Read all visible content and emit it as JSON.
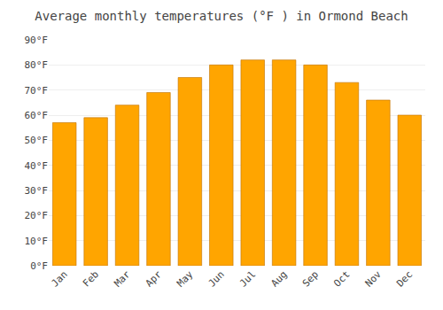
{
  "chart_data": {
    "type": "bar",
    "title": "Average monthly temperatures (°F ) in Ormond Beach",
    "categories": [
      "Jan",
      "Feb",
      "Mar",
      "Apr",
      "May",
      "Jun",
      "Jul",
      "Aug",
      "Sep",
      "Oct",
      "Nov",
      "Dec"
    ],
    "values": [
      57,
      59,
      64,
      69,
      75,
      80,
      82,
      82,
      80,
      73,
      66,
      60
    ],
    "color": "#FFA500",
    "ylim": [
      0,
      90
    ],
    "yticks": [
      {
        "value": 0,
        "label": "0°F"
      },
      {
        "value": 10,
        "label": "10°F"
      },
      {
        "value": 20,
        "label": "20°F"
      },
      {
        "value": 30,
        "label": "30°F"
      },
      {
        "value": 40,
        "label": "40°F"
      },
      {
        "value": 50,
        "label": "50°F"
      },
      {
        "value": 60,
        "label": "60°F"
      },
      {
        "value": 70,
        "label": "70°F"
      },
      {
        "value": 80,
        "label": "80°F"
      },
      {
        "value": 90,
        "label": "90°F"
      }
    ],
    "grid": true
  }
}
